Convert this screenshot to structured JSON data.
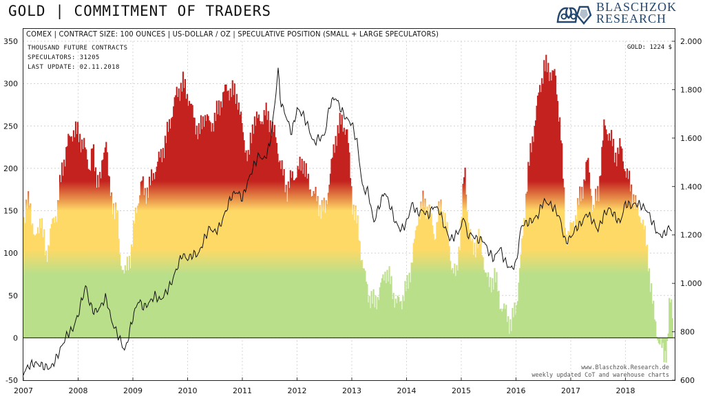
{
  "header": {
    "title": "GOLD | COMMITMENT OF TRADERS",
    "logo": {
      "line1": "BLASCHZOK",
      "line2": "RESEARCH"
    }
  },
  "chart_data": {
    "type": "area",
    "title": "GOLD | COMMITMENT OF TRADERS",
    "subtitle": "COMEX | CONTRACT SIZE: 100 OUNCES | US-DOLLAR / OZ | SPECULATIVE POSITION (SMALL + LARGE SPECULATORS)",
    "info_lines": [
      "THOUSAND  FUTURE  CONTRACTS",
      "SPECULATORS:  31205",
      "LAST UPDATE:  02.11.2018"
    ],
    "gold_label": "GOLD:  1224 $",
    "credit_lines": [
      "www.Blaschzok.Research.de",
      "weekly updated CoT and warehouse charts"
    ],
    "x_ticks": [
      "2007",
      "2008",
      "2009",
      "2010",
      "2011",
      "2012",
      "2013",
      "2014",
      "2015",
      "2016",
      "2017",
      "2018"
    ],
    "y_left_ticks": [
      "350",
      "300",
      "250",
      "200",
      "150",
      "100",
      "50",
      "0",
      "-50"
    ],
    "y_right_ticks": [
      "2.000",
      "1.800",
      "1.600",
      "1.400",
      "1.200",
      "1.000",
      "800",
      "600"
    ],
    "y_left_lim": [
      -50,
      350
    ],
    "y_right_lim": [
      600,
      2000
    ],
    "x_lim": [
      2007.0,
      2018.9
    ],
    "grid": true,
    "series": [
      {
        "name": "SPECULATORS",
        "axis": "left",
        "fill": "gradient",
        "points": [
          [
            2007.0,
            140
          ],
          [
            2007.1,
            165
          ],
          [
            2007.2,
            110
          ],
          [
            2007.3,
            145
          ],
          [
            2007.4,
            95
          ],
          [
            2007.5,
            130
          ],
          [
            2007.6,
            150
          ],
          [
            2007.7,
            200
          ],
          [
            2007.8,
            230
          ],
          [
            2007.9,
            245
          ],
          [
            2008.0,
            240
          ],
          [
            2008.1,
            225
          ],
          [
            2008.2,
            200
          ],
          [
            2008.25,
            225
          ],
          [
            2008.3,
            195
          ],
          [
            2008.4,
            185
          ],
          [
            2008.45,
            215
          ],
          [
            2008.5,
            240
          ],
          [
            2008.55,
            180
          ],
          [
            2008.6,
            160
          ],
          [
            2008.7,
            150
          ],
          [
            2008.75,
            95
          ],
          [
            2008.85,
            75
          ],
          [
            2008.95,
            100
          ],
          [
            2009.05,
            150
          ],
          [
            2009.15,
            185
          ],
          [
            2009.2,
            170
          ],
          [
            2009.3,
            180
          ],
          [
            2009.4,
            200
          ],
          [
            2009.5,
            215
          ],
          [
            2009.6,
            235
          ],
          [
            2009.7,
            265
          ],
          [
            2009.8,
            290
          ],
          [
            2009.9,
            300
          ],
          [
            2010.0,
            285
          ],
          [
            2010.1,
            260
          ],
          [
            2010.2,
            240
          ],
          [
            2010.3,
            265
          ],
          [
            2010.4,
            250
          ],
          [
            2010.5,
            260
          ],
          [
            2010.6,
            280
          ],
          [
            2010.7,
            295
          ],
          [
            2010.8,
            290
          ],
          [
            2010.9,
            285
          ],
          [
            2011.0,
            240
          ],
          [
            2011.1,
            210
          ],
          [
            2011.2,
            260
          ],
          [
            2011.3,
            255
          ],
          [
            2011.4,
            265
          ],
          [
            2011.5,
            255
          ],
          [
            2011.6,
            235
          ],
          [
            2011.7,
            200
          ],
          [
            2011.8,
            175
          ],
          [
            2011.9,
            190
          ],
          [
            2012.0,
            195
          ],
          [
            2012.1,
            210
          ],
          [
            2012.2,
            180
          ],
          [
            2012.3,
            170
          ],
          [
            2012.4,
            155
          ],
          [
            2012.5,
            150
          ],
          [
            2012.6,
            195
          ],
          [
            2012.7,
            240
          ],
          [
            2012.8,
            255
          ],
          [
            2012.9,
            245
          ],
          [
            2013.0,
            160
          ],
          [
            2013.1,
            130
          ],
          [
            2013.2,
            80
          ],
          [
            2013.3,
            50
          ],
          [
            2013.4,
            40
          ],
          [
            2013.5,
            55
          ],
          [
            2013.6,
            80
          ],
          [
            2013.7,
            65
          ],
          [
            2013.8,
            40
          ],
          [
            2013.9,
            45
          ],
          [
            2014.0,
            60
          ],
          [
            2014.1,
            95
          ],
          [
            2014.2,
            145
          ],
          [
            2014.3,
            160
          ],
          [
            2014.4,
            150
          ],
          [
            2014.5,
            120
          ],
          [
            2014.6,
            155
          ],
          [
            2014.7,
            140
          ],
          [
            2014.8,
            90
          ],
          [
            2014.9,
            70
          ],
          [
            2015.0,
            150
          ],
          [
            2015.05,
            200
          ],
          [
            2015.1,
            150
          ],
          [
            2015.2,
            100
          ],
          [
            2015.3,
            120
          ],
          [
            2015.4,
            90
          ],
          [
            2015.5,
            60
          ],
          [
            2015.6,
            75
          ],
          [
            2015.7,
            40
          ],
          [
            2015.8,
            30
          ],
          [
            2015.9,
            15
          ],
          [
            2016.0,
            40
          ],
          [
            2016.1,
            110
          ],
          [
            2016.2,
            190
          ],
          [
            2016.3,
            240
          ],
          [
            2016.4,
            285
          ],
          [
            2016.5,
            320
          ],
          [
            2016.6,
            315
          ],
          [
            2016.7,
            310
          ],
          [
            2016.8,
            250
          ],
          [
            2016.9,
            120
          ],
          [
            2017.0,
            130
          ],
          [
            2017.1,
            150
          ],
          [
            2017.2,
            175
          ],
          [
            2017.3,
            210
          ],
          [
            2017.4,
            150
          ],
          [
            2017.5,
            175
          ],
          [
            2017.6,
            250
          ],
          [
            2017.7,
            240
          ],
          [
            2017.8,
            215
          ],
          [
            2017.9,
            225
          ],
          [
            2018.0,
            195
          ],
          [
            2018.1,
            175
          ],
          [
            2018.2,
            150
          ],
          [
            2018.3,
            140
          ],
          [
            2018.4,
            95
          ],
          [
            2018.5,
            30
          ],
          [
            2018.6,
            -5
          ],
          [
            2018.7,
            -20
          ],
          [
            2018.75,
            -10
          ],
          [
            2018.8,
            45
          ],
          [
            2018.85,
            30
          ]
        ]
      },
      {
        "name": "GOLD",
        "axis": "right",
        "points": [
          [
            2007.0,
            630
          ],
          [
            2007.1,
            660
          ],
          [
            2007.2,
            670
          ],
          [
            2007.3,
            665
          ],
          [
            2007.4,
            655
          ],
          [
            2007.5,
            650
          ],
          [
            2007.6,
            690
          ],
          [
            2007.7,
            740
          ],
          [
            2007.8,
            790
          ],
          [
            2007.9,
            810
          ],
          [
            2008.0,
            870
          ],
          [
            2008.1,
            960
          ],
          [
            2008.15,
            990
          ],
          [
            2008.2,
            920
          ],
          [
            2008.3,
            880
          ],
          [
            2008.4,
            900
          ],
          [
            2008.5,
            940
          ],
          [
            2008.55,
            910
          ],
          [
            2008.6,
            850
          ],
          [
            2008.7,
            800
          ],
          [
            2008.8,
            750
          ],
          [
            2008.85,
            720
          ],
          [
            2008.9,
            760
          ],
          [
            2009.0,
            860
          ],
          [
            2009.1,
            930
          ],
          [
            2009.2,
            900
          ],
          [
            2009.3,
            920
          ],
          [
            2009.4,
            950
          ],
          [
            2009.5,
            930
          ],
          [
            2009.6,
            960
          ],
          [
            2009.7,
            1000
          ],
          [
            2009.8,
            1060
          ],
          [
            2009.9,
            1120
          ],
          [
            2010.0,
            1100
          ],
          [
            2010.1,
            1120
          ],
          [
            2010.2,
            1120
          ],
          [
            2010.3,
            1180
          ],
          [
            2010.4,
            1230
          ],
          [
            2010.5,
            1210
          ],
          [
            2010.6,
            1240
          ],
          [
            2010.7,
            1300
          ],
          [
            2010.8,
            1360
          ],
          [
            2010.9,
            1380
          ],
          [
            2011.0,
            1350
          ],
          [
            2011.1,
            1420
          ],
          [
            2011.2,
            1480
          ],
          [
            2011.3,
            1530
          ],
          [
            2011.4,
            1510
          ],
          [
            2011.5,
            1570
          ],
          [
            2011.6,
            1750
          ],
          [
            2011.65,
            1890
          ],
          [
            2011.7,
            1750
          ],
          [
            2011.8,
            1690
          ],
          [
            2011.9,
            1620
          ],
          [
            2012.0,
            1720
          ],
          [
            2012.1,
            1700
          ],
          [
            2012.2,
            1650
          ],
          [
            2012.3,
            1580
          ],
          [
            2012.4,
            1600
          ],
          [
            2012.5,
            1610
          ],
          [
            2012.6,
            1740
          ],
          [
            2012.7,
            1770
          ],
          [
            2012.8,
            1720
          ],
          [
            2012.9,
            1680
          ],
          [
            2013.0,
            1660
          ],
          [
            2013.1,
            1580
          ],
          [
            2013.2,
            1390
          ],
          [
            2013.3,
            1380
          ],
          [
            2013.4,
            1250
          ],
          [
            2013.5,
            1320
          ],
          [
            2013.6,
            1380
          ],
          [
            2013.7,
            1320
          ],
          [
            2013.8,
            1250
          ],
          [
            2013.9,
            1220
          ],
          [
            2014.0,
            1250
          ],
          [
            2014.1,
            1330
          ],
          [
            2014.2,
            1290
          ],
          [
            2014.3,
            1300
          ],
          [
            2014.4,
            1280
          ],
          [
            2014.5,
            1320
          ],
          [
            2014.6,
            1300
          ],
          [
            2014.7,
            1230
          ],
          [
            2014.8,
            1180
          ],
          [
            2014.9,
            1200
          ],
          [
            2015.0,
            1230
          ],
          [
            2015.05,
            1290
          ],
          [
            2015.1,
            1200
          ],
          [
            2015.2,
            1200
          ],
          [
            2015.3,
            1180
          ],
          [
            2015.4,
            1180
          ],
          [
            2015.5,
            1130
          ],
          [
            2015.6,
            1100
          ],
          [
            2015.7,
            1150
          ],
          [
            2015.8,
            1090
          ],
          [
            2015.9,
            1060
          ],
          [
            2016.0,
            1080
          ],
          [
            2016.1,
            1240
          ],
          [
            2016.2,
            1250
          ],
          [
            2016.3,
            1260
          ],
          [
            2016.4,
            1280
          ],
          [
            2016.5,
            1340
          ],
          [
            2016.6,
            1330
          ],
          [
            2016.7,
            1310
          ],
          [
            2016.8,
            1270
          ],
          [
            2016.9,
            1170
          ],
          [
            2017.0,
            1190
          ],
          [
            2017.1,
            1230
          ],
          [
            2017.2,
            1250
          ],
          [
            2017.3,
            1290
          ],
          [
            2017.4,
            1260
          ],
          [
            2017.5,
            1220
          ],
          [
            2017.6,
            1280
          ],
          [
            2017.7,
            1310
          ],
          [
            2017.8,
            1280
          ],
          [
            2017.9,
            1250
          ],
          [
            2018.0,
            1330
          ],
          [
            2018.1,
            1320
          ],
          [
            2018.2,
            1330
          ],
          [
            2018.3,
            1320
          ],
          [
            2018.4,
            1300
          ],
          [
            2018.5,
            1250
          ],
          [
            2018.6,
            1200
          ],
          [
            2018.7,
            1200
          ],
          [
            2018.8,
            1230
          ],
          [
            2018.85,
            1220
          ]
        ]
      }
    ]
  }
}
